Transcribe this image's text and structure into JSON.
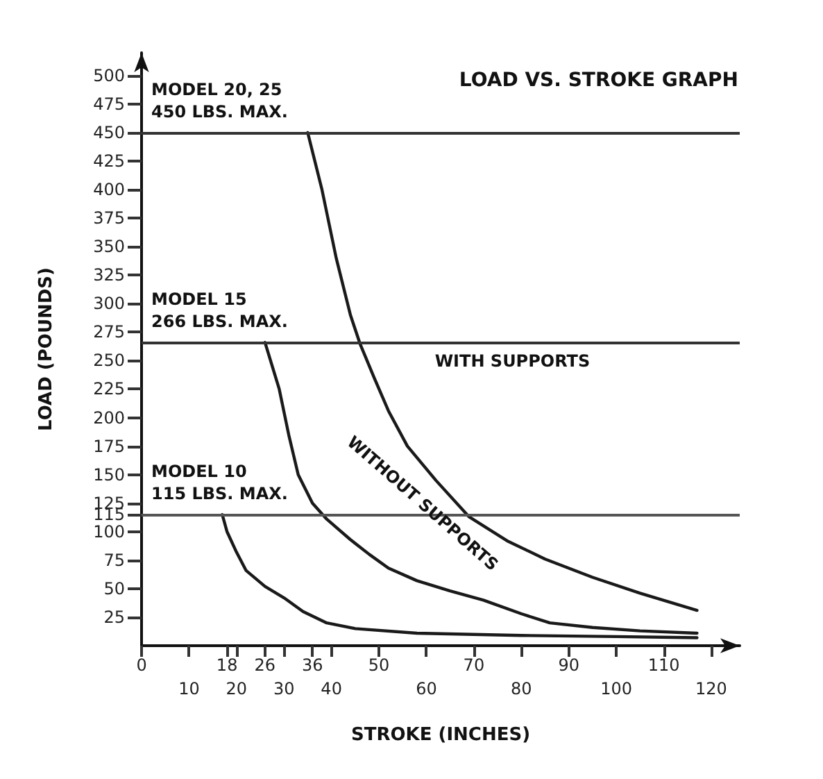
{
  "chart_data": {
    "type": "line",
    "title": "LOAD VS. STROKE GRAPH",
    "xlabel": "STROKE (INCHES)",
    "ylabel": "LOAD (POUNDS)",
    "series": [
      {
        "color": "#1a1a1a",
        "x": [
          35,
          38,
          41,
          44,
          46,
          49,
          52,
          56,
          62,
          69,
          77,
          85,
          95,
          105,
          117
        ],
        "values": [
          450,
          400,
          340,
          290,
          265,
          235,
          206,
          175,
          145,
          113,
          92,
          76,
          60,
          46,
          31
        ]
      },
      {
        "color": "#1a1a1a",
        "x": [
          26,
          29,
          31,
          33,
          36,
          39,
          44,
          48,
          52,
          58,
          65,
          72,
          80,
          86,
          95,
          105,
          117
        ],
        "values": [
          266,
          225,
          185,
          150,
          125,
          111,
          93,
          80,
          68,
          57,
          48,
          40,
          28,
          20,
          16,
          13,
          11
        ]
      },
      {
        "color": "#1a1a1a",
        "x": [
          17,
          18,
          20,
          22,
          26,
          30,
          34,
          39,
          45,
          58,
          80,
          100,
          117
        ],
        "values": [
          115,
          100,
          82,
          66,
          52,
          42,
          30,
          20,
          15,
          11,
          9,
          8,
          7
        ]
      }
    ],
    "ref_lines": [
      {
        "axis": "y",
        "value": 450,
        "label": "MODEL 20, 25\n450 LBS. MAX.",
        "color": "#333333"
      },
      {
        "axis": "y",
        "value": 266,
        "label": "MODEL 15\n266 LBS. MAX.",
        "color": "#333333"
      },
      {
        "axis": "y",
        "value": 115,
        "label": "MODEL 10\n115 LBS. MAX.",
        "color": "#555555"
      }
    ],
    "annotations": [
      "WITH SUPPORTS",
      "WITHOUT SUPPORTS"
    ],
    "xlim": [
      0,
      126
    ],
    "ylim": [
      0,
      520
    ],
    "xticks": [
      0,
      18,
      26,
      36,
      50,
      70,
      90,
      110
    ],
    "x2lim": [
      0,
      126
    ],
    "x2ticks": [
      10,
      20,
      30,
      40,
      60,
      80,
      100,
      120
    ],
    "yticks": [
      25,
      50,
      75,
      100,
      115,
      125,
      150,
      175,
      200,
      225,
      250,
      275,
      300,
      325,
      350,
      375,
      400,
      425,
      450,
      475,
      500
    ],
    "grid": false,
    "marker": "none",
    "line_style": "solid"
  }
}
